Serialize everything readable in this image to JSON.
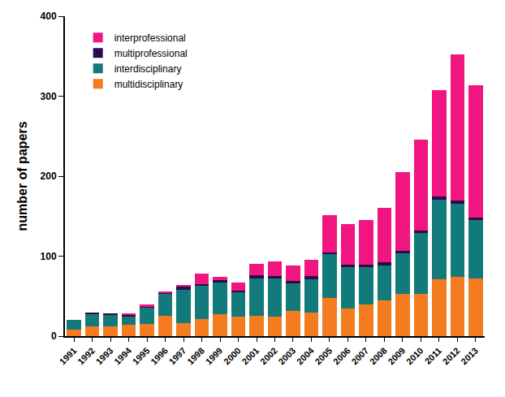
{
  "chart_data": {
    "type": "bar",
    "stacked": true,
    "grid": false,
    "legend": "top-left",
    "y_label": "number of papers",
    "categories": [
      "1991",
      "1992",
      "1993",
      "1994",
      "1995",
      "1996",
      "1997",
      "1998",
      "1999",
      "2000",
      "2001",
      "2002",
      "2003",
      "2004",
      "2005",
      "2006",
      "2007",
      "2008",
      "2009",
      "2010",
      "2011",
      "2012",
      "2013"
    ],
    "ylim": [
      0,
      400
    ],
    "yticks": [
      0,
      100,
      200,
      300,
      400
    ],
    "series": [
      {
        "name": "multidisciplinary",
        "color": "#f47b20",
        "values": [
          8,
          12,
          12,
          14,
          15,
          25,
          16,
          21,
          27,
          24,
          25,
          24,
          31,
          29,
          48,
          35,
          40,
          45,
          53,
          53,
          71,
          74,
          72
        ]
      },
      {
        "name": "interdisciplinary",
        "color": "#127a7a",
        "values": [
          12,
          16,
          15,
          11,
          21,
          28,
          42,
          42,
          40,
          31,
          47,
          48,
          36,
          42,
          55,
          51,
          47,
          43,
          51,
          76,
          100,
          91,
          74
        ]
      },
      {
        "name": "multiprofessional",
        "color": "#2d0a4e",
        "values": [
          0,
          1,
          1,
          2,
          1,
          1,
          4,
          2,
          3,
          2,
          4,
          3,
          2,
          4,
          2,
          3,
          2,
          4,
          3,
          3,
          4,
          5,
          2
        ]
      },
      {
        "name": "interprofessional",
        "color": "#f0157f",
        "values": [
          0,
          0,
          0,
          1,
          3,
          1,
          1,
          13,
          4,
          10,
          14,
          18,
          19,
          20,
          46,
          51,
          56,
          68,
          98,
          114,
          133,
          182,
          166
        ]
      }
    ]
  }
}
